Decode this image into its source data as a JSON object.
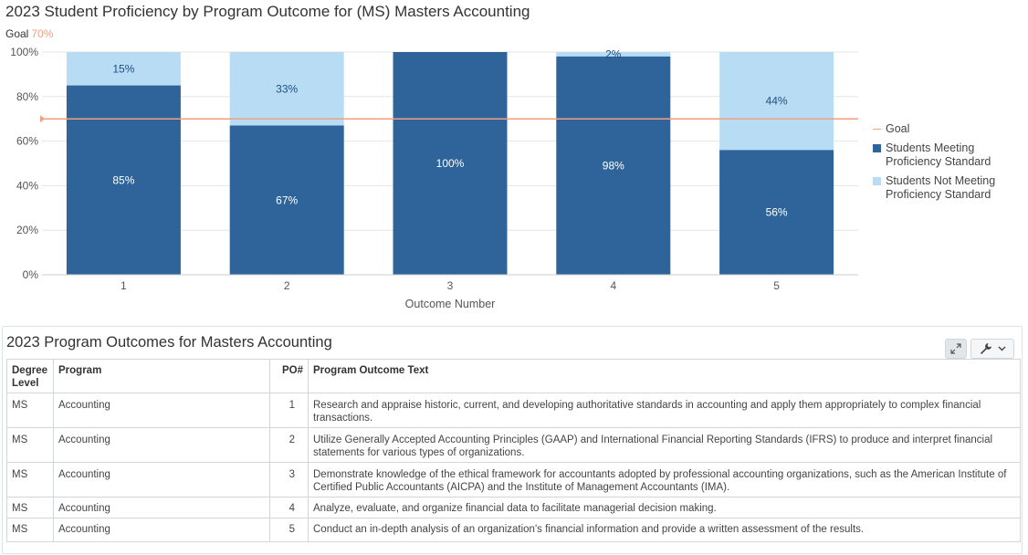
{
  "chart_title": "2023 Student Proficiency by Program Outcome for (MS) Masters Accounting",
  "goal_caption": {
    "label": "Goal",
    "value": "70%"
  },
  "chart_data": {
    "type": "bar",
    "stacked": true,
    "title": "2023 Student Proficiency by Program Outcome for (MS) Masters Accounting",
    "xlabel": "Outcome Number",
    "ylabel": "",
    "categories": [
      "1",
      "2",
      "3",
      "4",
      "5"
    ],
    "ylim": [
      0,
      100
    ],
    "y_ticks": [
      "0%",
      "20%",
      "40%",
      "60%",
      "80%",
      "100%"
    ],
    "y_tick_values": [
      0,
      20,
      40,
      60,
      80,
      100
    ],
    "grid": true,
    "goal": 70,
    "goal_name": "Goal",
    "legend_position": "right",
    "series": [
      {
        "name": "Students Meeting Proficiency Standard",
        "values": [
          85,
          67,
          100,
          98,
          56
        ],
        "labels": [
          "85%",
          "67%",
          "100%",
          "98%",
          "56%"
        ],
        "color": "#2e6499"
      },
      {
        "name": "Students Not Meeting Proficiency Standard",
        "values": [
          15,
          33,
          0,
          2,
          44
        ],
        "labels": [
          "15%",
          "33%",
          "",
          "2%",
          "44%"
        ],
        "color": "#b8dcf4"
      }
    ]
  },
  "legend": {
    "goal": "Goal",
    "meeting_line1": "Students Meeting",
    "meeting_line2": "Proficiency Standard",
    "not_meeting_line1": "Students Not Meeting",
    "not_meeting_line2": "Proficiency Standard"
  },
  "colors": {
    "meeting": "#2e6499",
    "not_meeting": "#b8dcf4",
    "goal_line": "#f0a080",
    "gridline": "#e6e6e6"
  },
  "outcomes_panel": {
    "title": "2023 Program Outcomes for Masters Accounting",
    "icons": {
      "expand": "expand-icon",
      "wrench": "wrench-icon",
      "dropdown": "chevron-down-icon"
    },
    "columns": {
      "degree_level_line1": "Degree",
      "degree_level_line2": "Level",
      "program": "Program",
      "po": "PO#",
      "text": "Program Outcome Text"
    },
    "rows": [
      {
        "level": "MS",
        "program": "Accounting",
        "po": "1",
        "text": "Research and appraise historic, current, and developing authoritative standards in accounting and apply them appropriately to complex financial transactions."
      },
      {
        "level": "MS",
        "program": "Accounting",
        "po": "2",
        "text": "Utilize Generally Accepted Accounting Principles (GAAP) and International Financial Reporting Standards (IFRS) to produce and interpret financial statements for various types of organizations."
      },
      {
        "level": "MS",
        "program": "Accounting",
        "po": "3",
        "text": "Demonstrate knowledge of the ethical framework for accountants adopted by professional accounting organizations, such as the American Institute of Certified Public Accountants (AICPA) and the Institute of Management Accountants (IMA)."
      },
      {
        "level": "MS",
        "program": "Accounting",
        "po": "4",
        "text": "Analyze, evaluate, and organize financial data to facilitate managerial decision making."
      },
      {
        "level": "MS",
        "program": "Accounting",
        "po": "5",
        "text": "Conduct an in-depth analysis of an organization's financial information and provide a written assessment of the results."
      }
    ]
  }
}
